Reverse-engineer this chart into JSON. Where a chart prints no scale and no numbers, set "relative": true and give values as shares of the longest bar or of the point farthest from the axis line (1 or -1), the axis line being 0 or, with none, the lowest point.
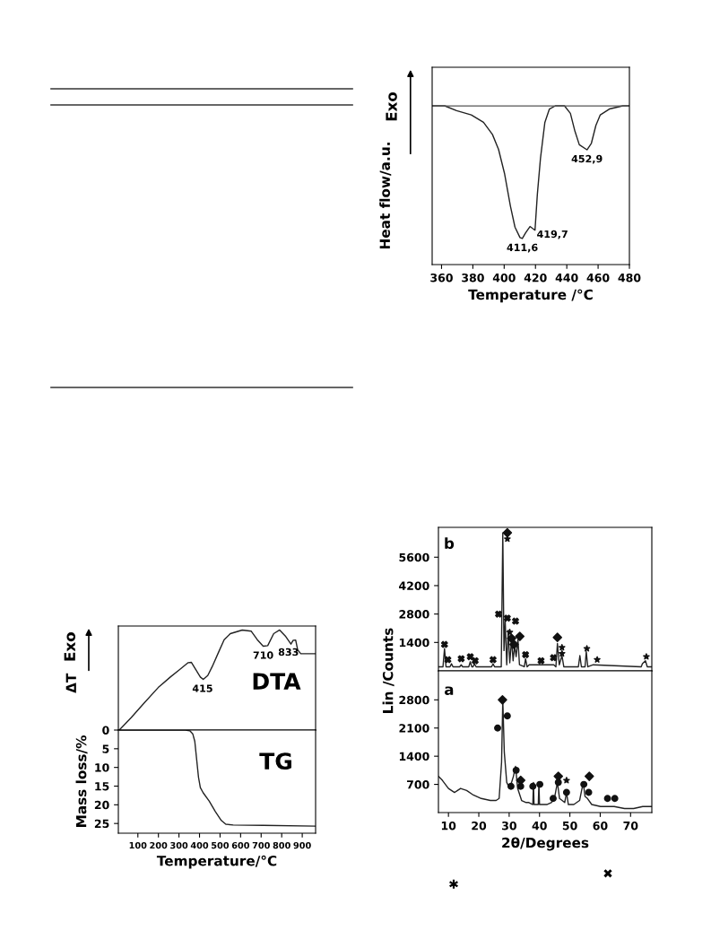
{
  "chart_data": [
    {
      "type": "line",
      "relative": true,
      "xlabel": "Temperature /°C",
      "ylabel": "Heat flow/a.u.",
      "xlim": [
        354,
        480
      ],
      "xticks": [
        360,
        380,
        400,
        420,
        440,
        460,
        480
      ],
      "series": [
        {
          "color": "#222222",
          "x": [
            354,
            362,
            369.6,
            379,
            386.8,
            392.5,
            396.4,
            400.2,
            404,
            406.9,
            410.1,
            411.6,
            413.6,
            416.5,
            418.4,
            419.7,
            421.2,
            423.2,
            426,
            428.9,
            432.7,
            438.5,
            442.3,
            445.2,
            448,
            452.9,
            455.7,
            458.6,
            461.4,
            467.2,
            475.8,
            480
          ],
          "values": [
            1.0,
            1.0,
            0.97,
            0.943,
            0.896,
            0.82,
            0.726,
            0.575,
            0.368,
            0.236,
            0.17,
            0.164,
            0.198,
            0.24,
            0.226,
            0.217,
            0.443,
            0.67,
            0.896,
            0.98,
            1.0,
            1.0,
            0.953,
            0.84,
            0.755,
            0.723,
            0.764,
            0.877,
            0.943,
            0.98,
            1.0,
            1.0
          ]
        }
      ],
      "ref_lines": [
        {
          "axis": "y",
          "value": 1,
          "color": "#555555"
        }
      ],
      "annotations": [
        {
          "text": "411,6",
          "x": 411.6,
          "y": 0.164
        },
        {
          "text": "419,7",
          "x": 419.7,
          "y": 0.217
        },
        {
          "text": "452,9",
          "x": 452.9,
          "y": 0.723
        },
        "Exo"
      ]
    },
    {
      "type": "line",
      "relative": true,
      "ylabel": "ΔT",
      "xlim": [
        5,
        965
      ],
      "tick_labels": false,
      "series": [
        {
          "color": "#222222",
          "x": [
            9.5,
            68,
            126,
            199,
            258,
            301,
            345,
            360,
            382,
            404,
            418,
            440,
            462,
            491,
            520,
            550,
            608,
            652,
            681,
            710,
            732,
            761,
            790,
            820,
            845,
            856,
            868,
            878,
            893,
            965
          ],
          "values": [
            0,
            0.126,
            0.26,
            0.425,
            0.53,
            0.6,
            0.674,
            0.677,
            0.605,
            0.53,
            0.506,
            0.545,
            0.635,
            0.77,
            0.904,
            0.964,
            1.0,
            0.988,
            0.904,
            0.838,
            0.844,
            0.964,
            1.0,
            0.934,
            0.859,
            0.898,
            0.9,
            0.8,
            0.763,
            0.763
          ]
        }
      ],
      "annotations": [
        {
          "text": "415",
          "x": 415,
          "y": 0.506
        },
        {
          "text": "710",
          "x": 710,
          "y": 0.838
        },
        {
          "text": "833",
          "x": 833,
          "y": 0.87
        },
        "DTA",
        "Exo"
      ]
    },
    {
      "type": "line",
      "xlabel": "Temperature/°C",
      "ylabel": "Mass loss/%",
      "xlim": [
        5,
        965
      ],
      "xticks": [
        100,
        200,
        300,
        400,
        500,
        600,
        700,
        800,
        900
      ],
      "ylim": [
        27.6,
        0
      ],
      "yticks": [
        0,
        5,
        10,
        15,
        20,
        25
      ],
      "series": [
        {
          "color": "#222222",
          "x": [
            9,
            331,
            353,
            367,
            377,
            386,
            395,
            404,
            418,
            447,
            477,
            506,
            528,
            564,
            710,
            965
          ],
          "values": [
            0,
            0,
            0.2,
            1,
            3,
            7.8,
            12.6,
            15.4,
            16.8,
            19,
            21.8,
            24.2,
            25.2,
            25.4,
            25.5,
            25.7
          ]
        }
      ],
      "annotations": [
        "TG"
      ]
    },
    {
      "type": "line",
      "xlim": [
        6.7,
        77
      ],
      "ylim": [
        0,
        7070
      ],
      "yticks": [
        1400,
        2800,
        4200,
        5600
      ],
      "tick_labels": "y",
      "series": [
        {
          "color": "#222222",
          "x": [
            6.7,
            8.2,
            8.7,
            9.2,
            10.5,
            11,
            11.5,
            13.7,
            14.2,
            14.7,
            16.7,
            17.2,
            17.7,
            18.1,
            18.6,
            19.1,
            24.2,
            24.7,
            25.2,
            27.4,
            27.9,
            28.3,
            28.7,
            29.2,
            29.7,
            30.2,
            30.8,
            31.3,
            31.8,
            32.3,
            32.9,
            33.4,
            35,
            35.4,
            35.9,
            36.6,
            40.5,
            44.7,
            45.4,
            45.9,
            46.5,
            47.4,
            48,
            52.8,
            53.3,
            53.8,
            55,
            55.4,
            55.9,
            57.7,
            73.5,
            73.9,
            74.9,
            75.5,
            77
          ],
          "values": [
            200,
            200,
            1100,
            200,
            200,
            350,
            200,
            200,
            300,
            200,
            200,
            450,
            200,
            200,
            350,
            200,
            200,
            350,
            200,
            200,
            6800,
            1000,
            2450,
            300,
            2000,
            400,
            1550,
            500,
            1250,
            700,
            1550,
            300,
            200,
            600,
            200,
            300,
            300,
            300,
            200,
            1350,
            300,
            750,
            200,
            200,
            750,
            200,
            200,
            950,
            200,
            300,
            200,
            350,
            500,
            200,
            200
          ]
        },
        {
          "type": "scatter",
          "marker": "cross",
          "color": "#111111",
          "x": [
            8.7,
            9.8,
            14.2,
            17.2,
            18.8,
            24.7,
            26.5,
            29.4,
            32.1,
            35.4,
            40.5,
            44.6
          ],
          "values": [
            1300,
            550,
            600,
            700,
            500,
            550,
            2800,
            2600,
            2450,
            800,
            500,
            650
          ]
        },
        {
          "type": "scatter",
          "marker": "star",
          "color": "#111111",
          "x": [
            29.4,
            30.2,
            47.4,
            47.4,
            55.6,
            59,
            75.2
          ],
          "values": [
            6500,
            1900,
            1150,
            850,
            1100,
            550,
            700
          ]
        },
        {
          "type": "scatter",
          "marker": "diamond",
          "color": "#111111",
          "x": [
            29.4,
            30.8,
            31.6,
            33.5,
            45.9
          ],
          "values": [
            6800,
            1600,
            1300,
            1700,
            1650
          ]
        }
      ],
      "annotations": [
        "b"
      ]
    },
    {
      "type": "line",
      "xlabel": "2θ/Degrees",
      "ylabel": "Lin /Counts",
      "xlim": [
        6.7,
        77
      ],
      "xticks": [
        10,
        20,
        30,
        40,
        50,
        60,
        70
      ],
      "ylim": [
        0,
        3520
      ],
      "yticks": [
        700,
        1400,
        2100,
        2800
      ],
      "series": [
        {
          "color": "#222222",
          "x": [
            6.75,
            8,
            10,
            12,
            14,
            16,
            17.9,
            20.8,
            23.8,
            25.7,
            26.7,
            27.5,
            27.9,
            28.4,
            29.2,
            30.2,
            31.4,
            32.1,
            32.8,
            34.1,
            35.6,
            36.5,
            37.8,
            38,
            38.2,
            39.6,
            39.8,
            40,
            42.4,
            43.9,
            44.9,
            45.9,
            46.6,
            48.3,
            48.9,
            49.5,
            51.3,
            53.2,
            54.4,
            55,
            55.8,
            57.2,
            60.1,
            62.3,
            64.6,
            68,
            71,
            74,
            76.9
          ],
          "values": [
            900,
            800,
            600,
            500,
            600,
            550,
            450,
            350,
            300,
            300,
            350,
            1250,
            2800,
            1500,
            750,
            600,
            900,
            1150,
            600,
            300,
            250,
            250,
            200,
            750,
            200,
            200,
            750,
            200,
            200,
            250,
            350,
            750,
            350,
            250,
            500,
            200,
            200,
            300,
            750,
            400,
            350,
            200,
            150,
            150,
            150,
            100,
            100,
            150,
            150
          ]
        },
        {
          "type": "scatter",
          "marker": "circle",
          "color": "#111111",
          "x": [
            26.2,
            29.4,
            32.3,
            30.6,
            33.8,
            37.8,
            40.1,
            44.5,
            46.2,
            48.9,
            54.6,
            56.2,
            62.4,
            64.8
          ],
          "values": [
            2100,
            2400,
            1050,
            650,
            650,
            650,
            700,
            350,
            750,
            500,
            700,
            500,
            350,
            350
          ]
        },
        {
          "type": "scatter",
          "marker": "diamond",
          "color": "#111111",
          "x": [
            27.8,
            33.8,
            46.2,
            56.4
          ],
          "values": [
            2800,
            800,
            900,
            900
          ]
        },
        {
          "type": "scatter",
          "marker": "star",
          "color": "#111111",
          "x": [
            48.9
          ],
          "values": [
            800
          ]
        }
      ],
      "annotations": [
        "a",
        "✖",
        "✱"
      ]
    }
  ]
}
